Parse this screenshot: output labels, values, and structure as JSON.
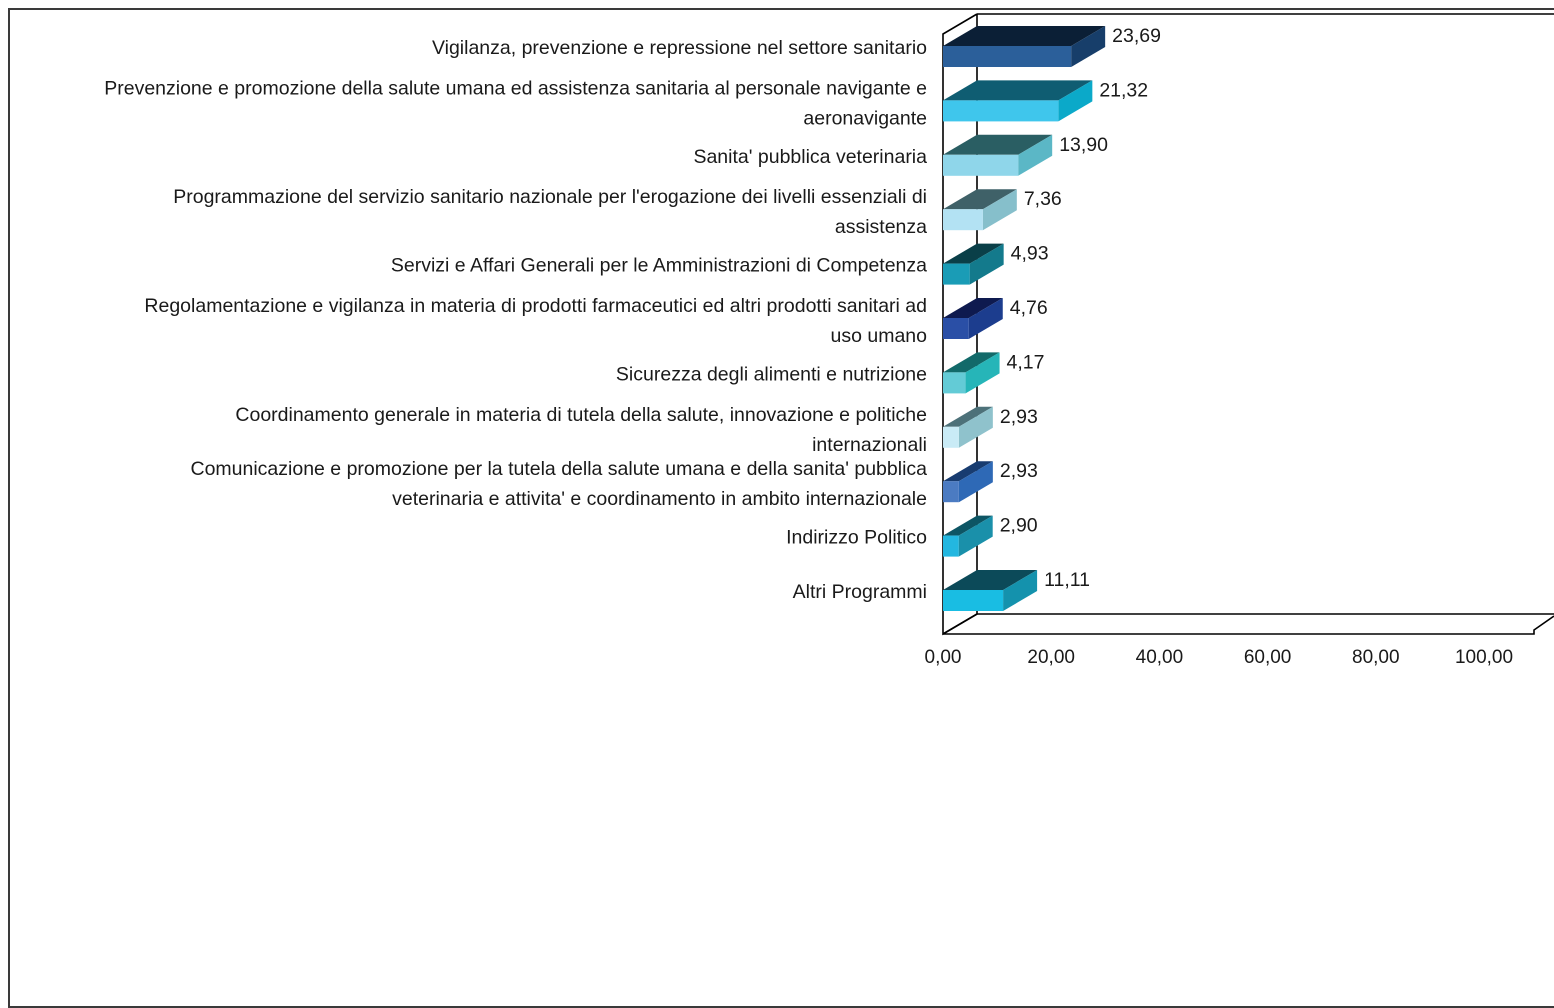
{
  "chart_data": {
    "type": "bar",
    "orientation": "horizontal",
    "three_d": true,
    "title": "",
    "xlabel": "",
    "ylabel": "",
    "xlim": [
      0,
      100
    ],
    "x_ticks": [
      "0,00",
      "20,00",
      "40,00",
      "60,00",
      "80,00",
      "100,00"
    ],
    "grid": false,
    "legend": "none",
    "categories": [
      "Vigilanza, prevenzione e repressione nel settore sanitario",
      "Prevenzione e promozione della salute umana ed assistenza sanitaria al personale navigante e aeronavigante",
      "Sanita' pubblica veterinaria",
      "Programmazione del servizio sanitario nazionale per l'erogazione dei livelli essenziali di assistenza",
      "Servizi e Affari Generali per le Amministrazioni di Competenza",
      "Regolamentazione e vigilanza in materia di prodotti farmaceutici ed altri prodotti sanitari ad uso umano",
      "Sicurezza degli alimenti e nutrizione",
      "Coordinamento generale in materia di tutela della salute, innovazione e politiche internazionali",
      "Comunicazione e promozione per la tutela della salute umana e della sanita' pubblica veterinaria e attivita' e coordinamento in ambito internazionale",
      "Indirizzo Politico",
      "Altri Programmi"
    ],
    "category_lines": [
      [
        "Vigilanza, prevenzione e repressione nel settore sanitario"
      ],
      [
        "Prevenzione e promozione della salute umana ed assistenza sanitaria al personale navigante e",
        "aeronavigante"
      ],
      [
        "Sanita' pubblica veterinaria"
      ],
      [
        "Programmazione del servizio sanitario nazionale per l'erogazione dei livelli essenziali di",
        "assistenza"
      ],
      [
        "Servizi e Affari Generali per le Amministrazioni di Competenza"
      ],
      [
        "Regolamentazione e vigilanza in materia di prodotti farmaceutici ed altri prodotti sanitari ad",
        "uso umano"
      ],
      [
        "Sicurezza degli alimenti e nutrizione"
      ],
      [
        "Coordinamento generale in materia di tutela della salute, innovazione e politiche",
        "internazionali"
      ],
      [
        "Comunicazione e promozione per la tutela della salute umana e della sanita' pubblica",
        "veterinaria e attivita' e coordinamento in ambito internazionale"
      ],
      [
        "Indirizzo Politico"
      ],
      [
        "Altri Programmi"
      ]
    ],
    "values": [
      23.69,
      21.32,
      13.9,
      7.36,
      4.93,
      4.76,
      4.17,
      2.93,
      2.93,
      2.9,
      11.11
    ],
    "value_labels": [
      "23,69",
      "21,32",
      "13,90",
      "7,36",
      "4,93",
      "4,76",
      "4,17",
      "2,93",
      "2,93",
      "2,90",
      "11,11"
    ],
    "colors": [
      {
        "front": "#2b5f9a",
        "side": "#173e6a",
        "top": "#0b1f36"
      },
      {
        "front": "#3fc6ec",
        "side": "#0ba9c9",
        "top": "#0f5d72"
      },
      {
        "front": "#8fd6ea",
        "side": "#5bb7c6",
        "top": "#2a5e63"
      },
      {
        "front": "#b3e2f3",
        "side": "#86bfcb",
        "top": "#3f6168"
      },
      {
        "front": "#1a9cb6",
        "side": "#137a8c",
        "top": "#0a3f48"
      },
      {
        "front": "#2a4fa6",
        "side": "#1c3d8e",
        "top": "#0e1a4f"
      },
      {
        "front": "#63cbd6",
        "side": "#26b5b8",
        "top": "#126a6a"
      },
      {
        "front": "#c9ebf6",
        "side": "#8fc2cc",
        "top": "#4d7179"
      },
      {
        "front": "#4b7bc2",
        "side": "#2e69b6",
        "top": "#183c70"
      },
      {
        "front": "#23b7e0",
        "side": "#1a90aa",
        "top": "#0d5564"
      },
      {
        "front": "#19bde3",
        "side": "#1492ad",
        "top": "#0c4a59"
      }
    ]
  }
}
